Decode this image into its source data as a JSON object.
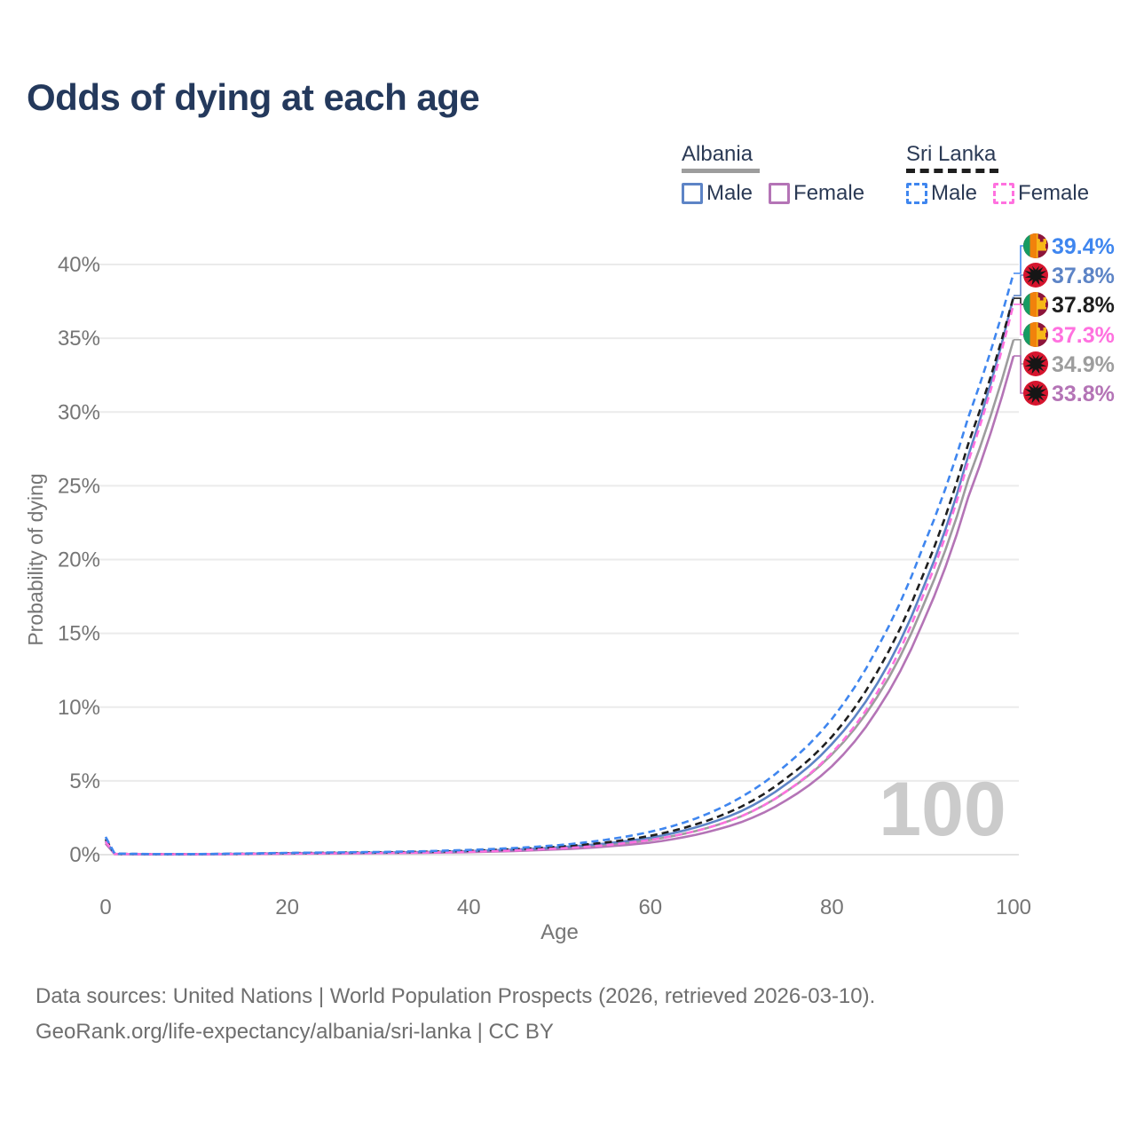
{
  "title": "Odds of dying at each age",
  "legend": {
    "groups": [
      {
        "country": "Albania",
        "line_style": "solid",
        "line_color": "#9d9d9d",
        "items": [
          {
            "label": "Male",
            "color": "#5d84c6",
            "style": "solid"
          },
          {
            "label": "Female",
            "color": "#b474b6",
            "style": "solid"
          }
        ]
      },
      {
        "country": "Sri Lanka",
        "line_style": "dashed",
        "line_color": "#1f1f1f",
        "items": [
          {
            "label": "Male",
            "color": "#3f86ef",
            "style": "dashed"
          },
          {
            "label": "Female",
            "color": "#ff71df",
            "style": "dashed"
          }
        ]
      }
    ]
  },
  "chart_data": {
    "type": "line",
    "title": "Odds of dying at each age",
    "xlabel": "Age",
    "ylabel": "Probability of dying",
    "xlim": [
      0,
      100
    ],
    "ylim": [
      0,
      40
    ],
    "grid": "horizontal",
    "legend_position": "top-right",
    "watermark": "100",
    "x_ticks": [
      0,
      20,
      40,
      60,
      80,
      100
    ],
    "y_ticks": [
      {
        "v": 0,
        "label": "0%"
      },
      {
        "v": 5,
        "label": "5%"
      },
      {
        "v": 10,
        "label": "10%"
      },
      {
        "v": 15,
        "label": "15%"
      },
      {
        "v": 20,
        "label": "20%"
      },
      {
        "v": 25,
        "label": "25%"
      },
      {
        "v": 30,
        "label": "30%"
      },
      {
        "v": 35,
        "label": "35%"
      },
      {
        "v": 40,
        "label": "40%"
      }
    ],
    "ages": [
      0,
      1,
      5,
      10,
      15,
      20,
      25,
      30,
      35,
      40,
      45,
      50,
      55,
      60,
      65,
      70,
      75,
      80,
      85,
      90,
      95,
      100
    ],
    "series": [
      {
        "name": "Sri Lanka Male",
        "color": "#3f86ef",
        "dash": true,
        "flag": "sri-lanka",
        "end_label": "39.4%",
        "values": [
          1.2,
          0.07,
          0.04,
          0.04,
          0.07,
          0.12,
          0.15,
          0.18,
          0.23,
          0.32,
          0.45,
          0.65,
          1.0,
          1.55,
          2.45,
          3.9,
          6.1,
          9.2,
          14.0,
          20.8,
          29.6,
          39.4
        ]
      },
      {
        "name": "Albania Male",
        "color": "#5d84c6",
        "dash": false,
        "flag": "albania",
        "end_label": "37.8%",
        "values": [
          0.95,
          0.05,
          0.03,
          0.03,
          0.06,
          0.1,
          0.12,
          0.14,
          0.18,
          0.24,
          0.34,
          0.5,
          0.75,
          1.15,
          1.85,
          2.95,
          4.8,
          7.5,
          11.6,
          18.0,
          27.0,
          37.8
        ]
      },
      {
        "name": "Sri Lanka Both sexes",
        "color": "#1f1f1f",
        "dash": true,
        "flag": "sri-lanka",
        "end_label": "37.8%",
        "values": [
          1.05,
          0.06,
          0.035,
          0.035,
          0.06,
          0.1,
          0.13,
          0.15,
          0.19,
          0.26,
          0.37,
          0.54,
          0.82,
          1.28,
          2.05,
          3.25,
          5.2,
          8.0,
          12.4,
          18.9,
          27.8,
          37.8
        ]
      },
      {
        "name": "Sri Lanka Female",
        "color": "#ff71df",
        "dash": true,
        "flag": "sri-lanka",
        "end_label": "37.3%",
        "values": [
          0.9,
          0.05,
          0.03,
          0.03,
          0.05,
          0.07,
          0.09,
          0.11,
          0.14,
          0.19,
          0.28,
          0.42,
          0.64,
          1.0,
          1.6,
          2.6,
          4.3,
          6.9,
          11.0,
          17.5,
          26.6,
          37.3
        ]
      },
      {
        "name": "Albania Both sexes",
        "color": "#9d9d9d",
        "dash": false,
        "flag": "albania",
        "end_label": "34.9%",
        "values": [
          0.85,
          0.045,
          0.03,
          0.03,
          0.05,
          0.08,
          0.1,
          0.12,
          0.15,
          0.21,
          0.3,
          0.44,
          0.66,
          1.0,
          1.6,
          2.6,
          4.3,
          6.8,
          10.7,
          16.8,
          25.4,
          34.9
        ]
      },
      {
        "name": "Albania Female",
        "color": "#b474b6",
        "dash": false,
        "flag": "albania",
        "end_label": "33.8%",
        "values": [
          0.75,
          0.04,
          0.025,
          0.025,
          0.04,
          0.06,
          0.08,
          0.1,
          0.12,
          0.17,
          0.24,
          0.36,
          0.54,
          0.82,
          1.35,
          2.2,
          3.7,
          6.0,
          9.8,
          15.7,
          24.2,
          33.8
        ]
      }
    ]
  },
  "footer": {
    "line1": "Data sources: United Nations | World Population Prospects (2026, retrieved 2026-03-10).",
    "line2": "GeoRank.org/life-expectancy/albania/sri-lanka | CC BY"
  }
}
